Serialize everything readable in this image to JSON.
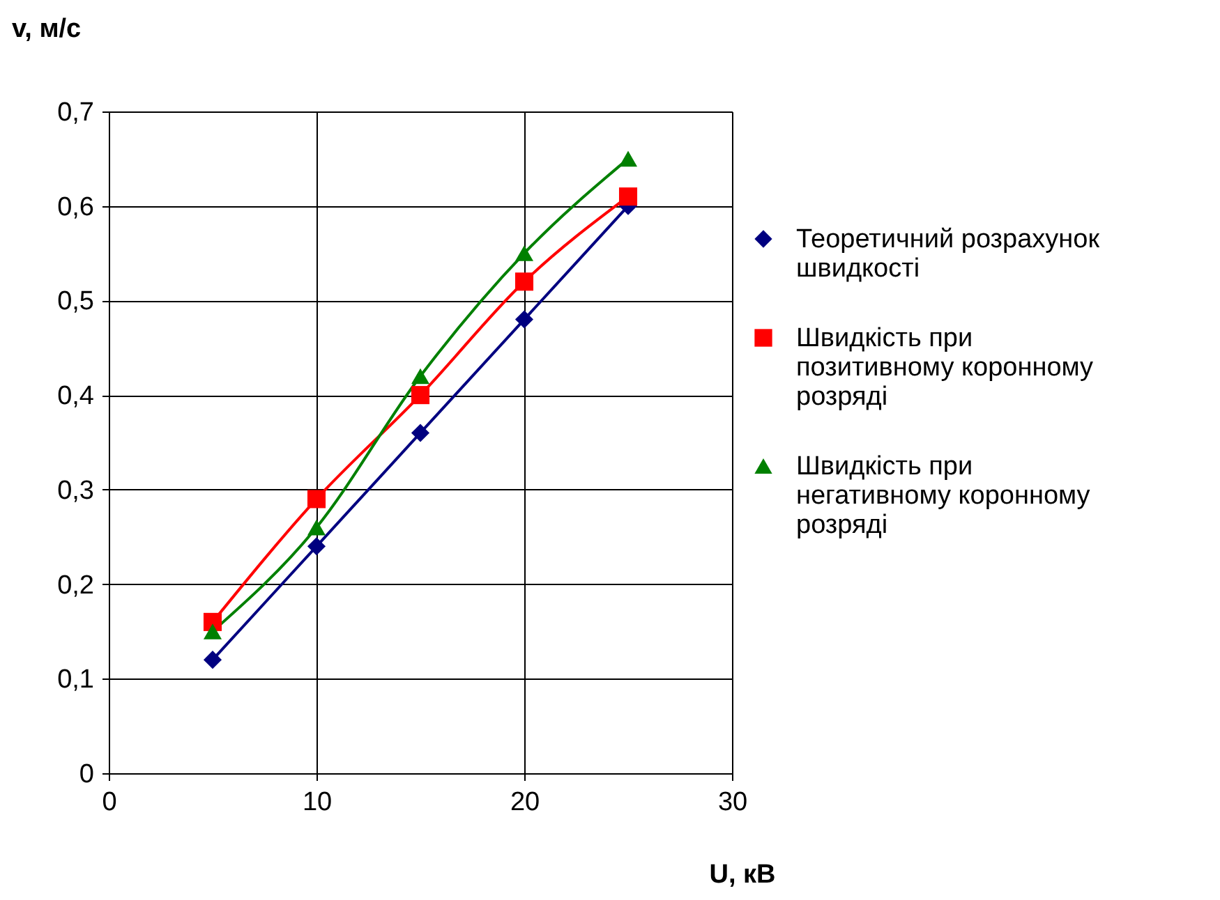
{
  "chart_data": {
    "type": "line",
    "xlabel": "U, кВ",
    "ylabel": "v, м/с",
    "x": [
      5,
      10,
      15,
      20,
      25
    ],
    "series": [
      {
        "name": "Теоретичний розрахунок швидкості",
        "color": "#000080",
        "marker": "diamond",
        "values": [
          0.12,
          0.24,
          0.36,
          0.48,
          0.6
        ]
      },
      {
        "name": "Швидкість при позитивному коронному розряді",
        "color": "#ff0000",
        "marker": "square",
        "values": [
          0.16,
          0.29,
          0.4,
          0.52,
          0.61
        ]
      },
      {
        "name": "Швидкість при негативному коронному розряді",
        "color": "#008000",
        "marker": "triangle",
        "values": [
          0.15,
          0.26,
          0.42,
          0.55,
          0.65
        ]
      }
    ],
    "xlim": [
      0,
      30
    ],
    "xticks": [
      0,
      10,
      20,
      30
    ],
    "ylim": [
      0,
      0.7
    ],
    "yticks": [
      {
        "value": 0,
        "label": "0"
      },
      {
        "value": 0.1,
        "label": "0,1"
      },
      {
        "value": 0.2,
        "label": "0,2"
      },
      {
        "value": 0.3,
        "label": "0,3"
      },
      {
        "value": 0.4,
        "label": "0,4"
      },
      {
        "value": 0.5,
        "label": "0,5"
      },
      {
        "value": 0.6,
        "label": "0,6"
      },
      {
        "value": 0.7,
        "label": "0,7"
      }
    ],
    "grid": true,
    "legend": "right",
    "line_style": "solid"
  }
}
